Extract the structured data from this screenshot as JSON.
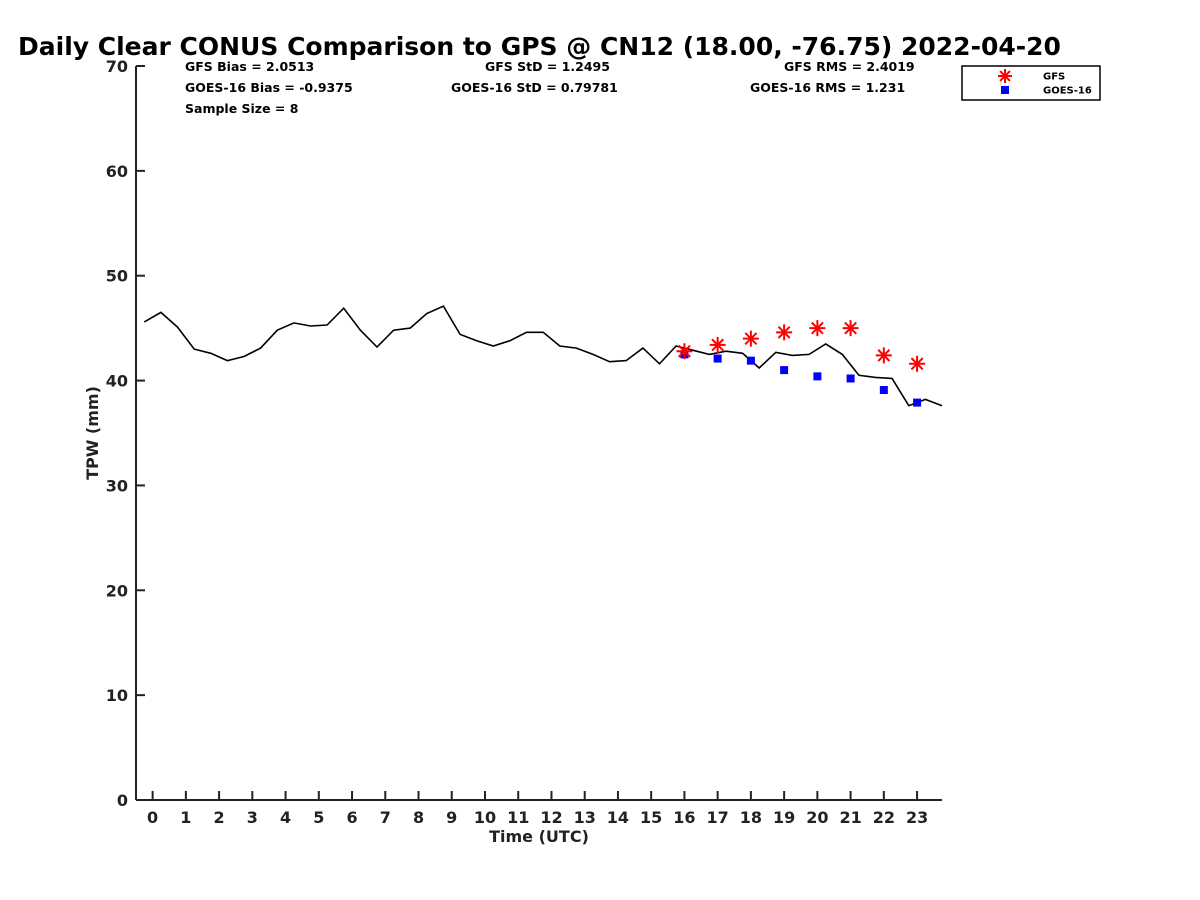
{
  "chart_data": {
    "type": "line",
    "title": "Daily Clear CONUS Comparison to GPS @ CN12 (18.00, -76.75) 2022-04-20",
    "xlabel": "Time (UTC)",
    "ylabel": "TPW (mm)",
    "xlim": [
      -0.5,
      23.75
    ],
    "ylim": [
      0,
      70
    ],
    "xticks": [
      0,
      1,
      2,
      3,
      4,
      5,
      6,
      7,
      8,
      9,
      10,
      11,
      12,
      13,
      14,
      15,
      16,
      17,
      18,
      19,
      20,
      21,
      22,
      23
    ],
    "yticks": [
      0,
      10,
      20,
      30,
      40,
      50,
      60,
      70
    ],
    "grid": false,
    "legend_position": "top-right",
    "stats": {
      "gfs_bias": "GFS Bias = 2.0513",
      "goes_bias": "GOES-16 Bias = -0.9375",
      "sample_size": "Sample Size = 8",
      "gfs_std": "GFS StD = 1.2495",
      "goes_std": "GOES-16 StD = 0.79781",
      "gfs_rms": "GFS RMS = 2.4019",
      "goes_rms": "GOES-16 RMS = 1.231"
    },
    "series": [
      {
        "kind": "line",
        "color": "#000000",
        "x": [
          -0.25,
          0.25,
          0.75,
          1.25,
          1.75,
          2.25,
          2.75,
          3.25,
          3.75,
          4.25,
          4.75,
          5.25,
          5.75,
          6.25,
          6.75,
          7.25,
          7.75,
          8.25,
          8.75,
          9.25,
          9.75,
          10.25,
          10.75,
          11.25,
          11.75,
          12.25,
          12.75,
          13.25,
          13.75,
          14.25,
          14.75,
          15.25,
          15.75,
          16.25,
          16.75,
          17.25,
          17.75,
          18.25,
          18.75,
          19.25,
          19.75,
          20.25,
          20.75,
          21.25,
          21.75,
          22.25,
          22.75,
          23.25,
          23.75
        ],
        "y": [
          45.6,
          46.5,
          45.1,
          43.0,
          42.6,
          41.9,
          42.3,
          43.1,
          44.8,
          45.5,
          45.2,
          45.3,
          46.9,
          44.8,
          43.2,
          44.8,
          45.0,
          46.4,
          47.1,
          44.4,
          43.8,
          43.3,
          43.8,
          44.6,
          44.6,
          43.3,
          43.1,
          42.5,
          41.8,
          41.9,
          43.1,
          41.6,
          43.3,
          42.9,
          42.5,
          42.8,
          42.6,
          41.2,
          42.7,
          42.4,
          42.5,
          43.5,
          42.5,
          40.5,
          40.3,
          40.2,
          37.6,
          38.2,
          37.6
        ]
      },
      {
        "name": "GFS",
        "kind": "scatter",
        "marker": "asterisk",
        "color": "#ff0000",
        "x": [
          16,
          17,
          18,
          19,
          20,
          21,
          22,
          23
        ],
        "y": [
          42.8,
          43.4,
          44.0,
          44.6,
          45.0,
          45.0,
          42.4,
          41.6
        ]
      },
      {
        "name": "GOES-16",
        "kind": "scatter",
        "marker": "square",
        "color": "#0000ff",
        "x": [
          16,
          17,
          18,
          19,
          20,
          21,
          22,
          23
        ],
        "y": [
          42.5,
          42.1,
          41.9,
          41.0,
          40.4,
          40.2,
          39.1,
          37.9
        ]
      }
    ]
  }
}
